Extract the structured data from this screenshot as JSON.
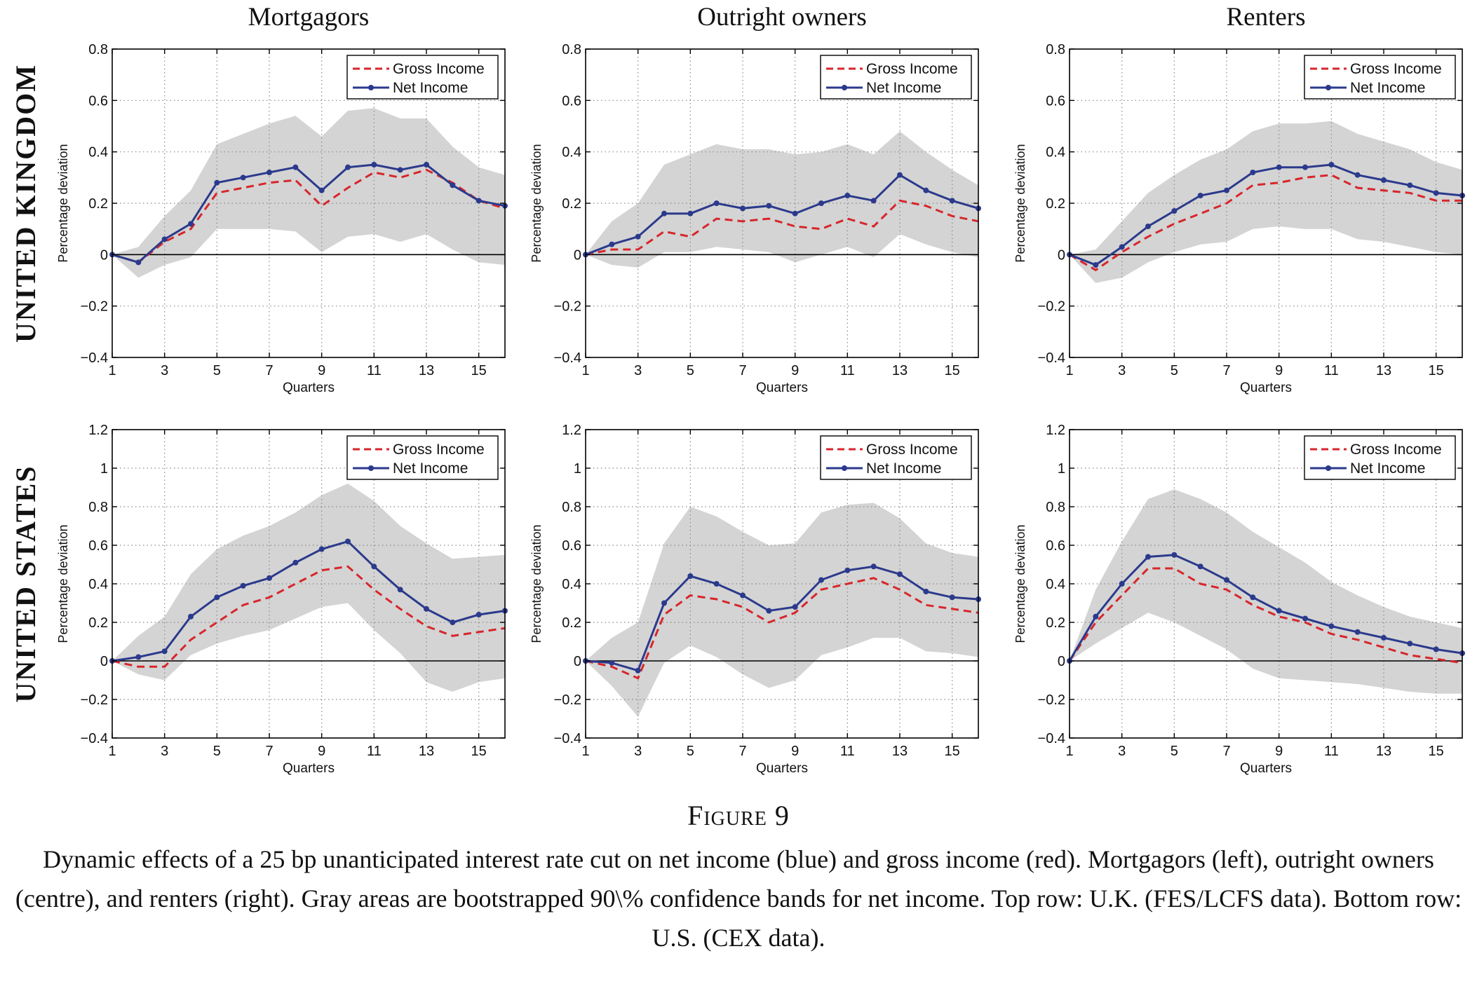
{
  "figure": {
    "label": "Figure 9",
    "caption": "Dynamic effects of a 25 bp unanticipated interest rate cut on net income (blue) and gross income (red). Mortgagors (left), outright owners (centre), and renters (right). Gray areas are bootstrapped 90\\% confidence bands for net income. Top row: U.K. (FES/LCFS data). Bottom row: U.S. (CEX data)."
  },
  "column_titles": [
    "Mortgagors",
    "Outright owners",
    "Renters"
  ],
  "row_titles": [
    "UNITED KINGDOM",
    "UNITED STATES"
  ],
  "colors": {
    "gross": "#d7262b",
    "net": "#2b3a8c",
    "band": "#d4d4d4",
    "axis": "#000000",
    "grid": "#888888"
  },
  "chart_data": [
    {
      "type": "line",
      "row": "UNITED KINGDOM",
      "column": "Mortgagors",
      "xlabel": "Quarters",
      "ylabel": "Percentage deviation",
      "xlim": [
        1,
        16
      ],
      "ylim": [
        -0.4,
        0.8
      ],
      "xticks": [
        1,
        3,
        5,
        7,
        9,
        11,
        13,
        15
      ],
      "yticks": [
        -0.4,
        -0.2,
        0,
        0.2,
        0.4,
        0.6,
        0.8
      ],
      "ytick_labels": [
        "−0.4",
        "−0.2",
        "0",
        "0.2",
        "0.4",
        "0.6",
        "0.8"
      ],
      "grid": true,
      "legend": "top-right",
      "x": [
        1,
        2,
        3,
        4,
        5,
        6,
        7,
        8,
        9,
        10,
        11,
        12,
        13,
        14,
        15,
        16
      ],
      "series": [
        {
          "name": "Gross Income",
          "style": "dashed",
          "values": [
            0,
            -0.03,
            0.05,
            0.1,
            0.24,
            0.26,
            0.28,
            0.29,
            0.19,
            0.26,
            0.32,
            0.3,
            0.33,
            0.28,
            0.21,
            0.18
          ]
        },
        {
          "name": "Net Income",
          "style": "solid-markers",
          "values": [
            0,
            -0.03,
            0.06,
            0.12,
            0.28,
            0.3,
            0.32,
            0.34,
            0.25,
            0.34,
            0.35,
            0.33,
            0.35,
            0.27,
            0.21,
            0.19
          ]
        }
      ],
      "band": {
        "upper": [
          0,
          0.03,
          0.15,
          0.25,
          0.43,
          0.47,
          0.51,
          0.54,
          0.46,
          0.56,
          0.57,
          0.53,
          0.53,
          0.42,
          0.34,
          0.31
        ],
        "lower": [
          0,
          -0.09,
          -0.04,
          -0.01,
          0.1,
          0.1,
          0.1,
          0.09,
          0.01,
          0.07,
          0.08,
          0.05,
          0.08,
          0.02,
          -0.03,
          -0.04
        ]
      }
    },
    {
      "type": "line",
      "row": "UNITED KINGDOM",
      "column": "Outright owners",
      "xlabel": "Quarters",
      "ylabel": "Percentage deviation",
      "xlim": [
        1,
        16
      ],
      "ylim": [
        -0.4,
        0.8
      ],
      "xticks": [
        1,
        3,
        5,
        7,
        9,
        11,
        13,
        15
      ],
      "yticks": [
        -0.4,
        -0.2,
        0,
        0.2,
        0.4,
        0.6,
        0.8
      ],
      "ytick_labels": [
        "−0.4",
        "−0.2",
        "0",
        "0.2",
        "0.4",
        "0.6",
        "0.8"
      ],
      "grid": true,
      "legend": "top-right",
      "x": [
        1,
        2,
        3,
        4,
        5,
        6,
        7,
        8,
        9,
        10,
        11,
        12,
        13,
        14,
        15,
        16
      ],
      "series": [
        {
          "name": "Gross Income",
          "style": "dashed",
          "values": [
            0,
            0.02,
            0.02,
            0.09,
            0.07,
            0.14,
            0.13,
            0.14,
            0.11,
            0.1,
            0.14,
            0.11,
            0.21,
            0.19,
            0.15,
            0.13
          ]
        },
        {
          "name": "Net Income",
          "style": "solid-markers",
          "values": [
            0,
            0.04,
            0.07,
            0.16,
            0.16,
            0.2,
            0.18,
            0.19,
            0.16,
            0.2,
            0.23,
            0.21,
            0.31,
            0.25,
            0.21,
            0.18
          ]
        }
      ],
      "band": {
        "upper": [
          0,
          0.13,
          0.2,
          0.35,
          0.39,
          0.43,
          0.41,
          0.41,
          0.39,
          0.4,
          0.43,
          0.39,
          0.48,
          0.4,
          0.33,
          0.27
        ],
        "lower": [
          0,
          -0.04,
          -0.05,
          0.01,
          0.01,
          0.03,
          0.02,
          0.01,
          -0.03,
          0.0,
          0.03,
          -0.01,
          0.08,
          0.04,
          0.01,
          -0.01
        ]
      }
    },
    {
      "type": "line",
      "row": "UNITED KINGDOM",
      "column": "Renters",
      "xlabel": "Quarters",
      "ylabel": "Percentage deviation",
      "xlim": [
        1,
        16
      ],
      "ylim": [
        -0.4,
        0.8
      ],
      "xticks": [
        1,
        3,
        5,
        7,
        9,
        11,
        13,
        15
      ],
      "yticks": [
        -0.4,
        -0.2,
        0,
        0.2,
        0.4,
        0.6,
        0.8
      ],
      "ytick_labels": [
        "−0.4",
        "−0.2",
        "0",
        "0.2",
        "0.4",
        "0.6",
        "0.8"
      ],
      "grid": true,
      "legend": "top-right",
      "x": [
        1,
        2,
        3,
        4,
        5,
        6,
        7,
        8,
        9,
        10,
        11,
        12,
        13,
        14,
        15,
        16
      ],
      "series": [
        {
          "name": "Gross Income",
          "style": "dashed",
          "values": [
            0,
            -0.06,
            0.01,
            0.07,
            0.12,
            0.16,
            0.2,
            0.27,
            0.28,
            0.3,
            0.31,
            0.26,
            0.25,
            0.24,
            0.21,
            0.21
          ]
        },
        {
          "name": "Net Income",
          "style": "solid-markers",
          "values": [
            0,
            -0.04,
            0.03,
            0.11,
            0.17,
            0.23,
            0.25,
            0.32,
            0.34,
            0.34,
            0.35,
            0.31,
            0.29,
            0.27,
            0.24,
            0.23
          ]
        }
      ],
      "band": {
        "upper": [
          0,
          0.02,
          0.13,
          0.24,
          0.31,
          0.37,
          0.41,
          0.48,
          0.51,
          0.51,
          0.52,
          0.47,
          0.44,
          0.41,
          0.36,
          0.33
        ],
        "lower": [
          0,
          -0.11,
          -0.09,
          -0.03,
          0.01,
          0.04,
          0.05,
          0.1,
          0.11,
          0.1,
          0.1,
          0.06,
          0.05,
          0.03,
          0.01,
          0.0
        ]
      }
    },
    {
      "type": "line",
      "row": "UNITED STATES",
      "column": "Mortgagors",
      "xlabel": "Quarters",
      "ylabel": "Percentage deviation",
      "xlim": [
        1,
        16
      ],
      "ylim": [
        -0.4,
        1.2
      ],
      "xticks": [
        1,
        3,
        5,
        7,
        9,
        11,
        13,
        15
      ],
      "yticks": [
        -0.4,
        -0.2,
        0,
        0.2,
        0.4,
        0.6,
        0.8,
        1,
        1.2
      ],
      "ytick_labels": [
        "−0.4",
        "−0.2",
        "0",
        "0.2",
        "0.4",
        "0.6",
        "0.8",
        "1",
        "1.2"
      ],
      "grid": true,
      "legend": "top-right",
      "x": [
        1,
        2,
        3,
        4,
        5,
        6,
        7,
        8,
        9,
        10,
        11,
        12,
        13,
        14,
        15,
        16
      ],
      "series": [
        {
          "name": "Gross Income",
          "style": "dashed",
          "values": [
            0,
            -0.03,
            -0.03,
            0.11,
            0.2,
            0.29,
            0.33,
            0.4,
            0.47,
            0.49,
            0.37,
            0.27,
            0.18,
            0.13,
            0.15,
            0.17
          ]
        },
        {
          "name": "Net Income",
          "style": "solid-markers",
          "values": [
            0,
            0.02,
            0.05,
            0.23,
            0.33,
            0.39,
            0.43,
            0.51,
            0.58,
            0.62,
            0.49,
            0.37,
            0.27,
            0.2,
            0.24,
            0.26
          ]
        }
      ],
      "band": {
        "upper": [
          0,
          0.13,
          0.23,
          0.45,
          0.58,
          0.65,
          0.7,
          0.77,
          0.86,
          0.92,
          0.83,
          0.7,
          0.61,
          0.53,
          0.54,
          0.55
        ],
        "lower": [
          0,
          -0.07,
          -0.1,
          0.03,
          0.09,
          0.13,
          0.16,
          0.22,
          0.28,
          0.3,
          0.16,
          0.04,
          -0.11,
          -0.16,
          -0.11,
          -0.09
        ]
      }
    },
    {
      "type": "line",
      "row": "UNITED STATES",
      "column": "Outright owners",
      "xlabel": "Quarters",
      "ylabel": "Percentage deviation",
      "xlim": [
        1,
        16
      ],
      "ylim": [
        -0.4,
        1.2
      ],
      "xticks": [
        1,
        3,
        5,
        7,
        9,
        11,
        13,
        15
      ],
      "yticks": [
        -0.4,
        -0.2,
        0,
        0.2,
        0.4,
        0.6,
        0.8,
        1,
        1.2
      ],
      "ytick_labels": [
        "−0.4",
        "−0.2",
        "0",
        "0.2",
        "0.4",
        "0.6",
        "0.8",
        "1",
        "1.2"
      ],
      "grid": true,
      "legend": "top-right",
      "x": [
        1,
        2,
        3,
        4,
        5,
        6,
        7,
        8,
        9,
        10,
        11,
        12,
        13,
        14,
        15,
        16
      ],
      "series": [
        {
          "name": "Gross Income",
          "style": "dashed",
          "values": [
            0,
            -0.03,
            -0.09,
            0.24,
            0.34,
            0.32,
            0.28,
            0.2,
            0.25,
            0.37,
            0.4,
            0.43,
            0.37,
            0.29,
            0.27,
            0.25
          ]
        },
        {
          "name": "Net Income",
          "style": "solid-markers",
          "values": [
            0,
            -0.01,
            -0.05,
            0.3,
            0.44,
            0.4,
            0.34,
            0.26,
            0.28,
            0.42,
            0.47,
            0.49,
            0.45,
            0.36,
            0.33,
            0.32
          ]
        }
      ],
      "band": {
        "upper": [
          0,
          0.12,
          0.2,
          0.61,
          0.8,
          0.75,
          0.67,
          0.6,
          0.61,
          0.77,
          0.81,
          0.82,
          0.74,
          0.61,
          0.56,
          0.54
        ],
        "lower": [
          0,
          -0.13,
          -0.29,
          -0.01,
          0.08,
          0.02,
          -0.07,
          -0.14,
          -0.1,
          0.03,
          0.07,
          0.12,
          0.12,
          0.05,
          0.04,
          0.02
        ]
      }
    },
    {
      "type": "line",
      "row": "UNITED STATES",
      "column": "Renters",
      "xlabel": "Quarters",
      "ylabel": "Percentage deviation",
      "xlim": [
        1,
        16
      ],
      "ylim": [
        -0.4,
        1.2
      ],
      "xticks": [
        1,
        3,
        5,
        7,
        9,
        11,
        13,
        15
      ],
      "yticks": [
        -0.4,
        -0.2,
        0,
        0.2,
        0.4,
        0.6,
        0.8,
        1,
        1.2
      ],
      "ytick_labels": [
        "−0.4",
        "−0.2",
        "0",
        "0.2",
        "0.4",
        "0.6",
        "0.8",
        "1",
        "1.2"
      ],
      "grid": true,
      "legend": "top-right",
      "x": [
        1,
        2,
        3,
        4,
        5,
        6,
        7,
        8,
        9,
        10,
        11,
        12,
        13,
        14,
        15,
        16
      ],
      "series": [
        {
          "name": "Gross Income",
          "style": "dashed",
          "values": [
            0,
            0.2,
            0.34,
            0.48,
            0.48,
            0.4,
            0.37,
            0.29,
            0.23,
            0.2,
            0.14,
            0.11,
            0.07,
            0.03,
            0.01,
            -0.01
          ]
        },
        {
          "name": "Net Income",
          "style": "solid-markers",
          "values": [
            0,
            0.23,
            0.4,
            0.54,
            0.55,
            0.49,
            0.42,
            0.33,
            0.26,
            0.22,
            0.18,
            0.15,
            0.12,
            0.09,
            0.06,
            0.04
          ]
        }
      ],
      "band": {
        "upper": [
          0,
          0.37,
          0.62,
          0.84,
          0.89,
          0.84,
          0.77,
          0.67,
          0.59,
          0.51,
          0.41,
          0.34,
          0.28,
          0.23,
          0.2,
          0.17
        ],
        "lower": [
          0,
          0.09,
          0.17,
          0.25,
          0.2,
          0.13,
          0.06,
          -0.04,
          -0.09,
          -0.1,
          -0.11,
          -0.12,
          -0.14,
          -0.16,
          -0.17,
          -0.17
        ]
      }
    }
  ]
}
